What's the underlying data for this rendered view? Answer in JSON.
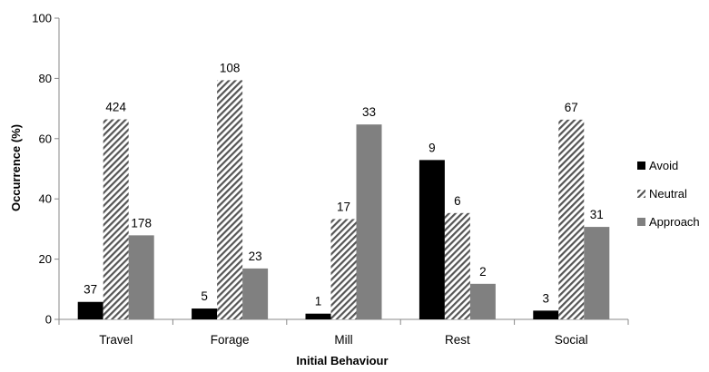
{
  "chart_data": {
    "type": "bar",
    "title": "",
    "xlabel": "Initial Behaviour",
    "ylabel": "Occurrence (%)",
    "ylim": [
      0,
      100
    ],
    "yticks": [
      0,
      20,
      40,
      60,
      80,
      100
    ],
    "grid": false,
    "legend_position": "right",
    "categories": [
      "Travel",
      "Forage",
      "Mill",
      "Rest",
      "Social"
    ],
    "series": [
      {
        "name": "Avoid",
        "fill": "solid",
        "color": "#000000",
        "values": [
          5.8,
          3.6,
          1.9,
          52.9,
          2.9
        ],
        "labels": [
          "37",
          "5",
          "1",
          "9",
          "3"
        ]
      },
      {
        "name": "Neutral",
        "fill": "diagonal-hatch",
        "color": "#555555",
        "values": [
          66.4,
          79.4,
          33.3,
          35.3,
          66.3
        ],
        "labels": [
          "424",
          "108",
          "17",
          "6",
          "67"
        ]
      },
      {
        "name": "Approach",
        "fill": "solid",
        "color": "#808080",
        "values": [
          27.9,
          16.9,
          64.7,
          11.8,
          30.7
        ],
        "labels": [
          "178",
          "23",
          "33",
          "2",
          "31"
        ]
      }
    ]
  }
}
